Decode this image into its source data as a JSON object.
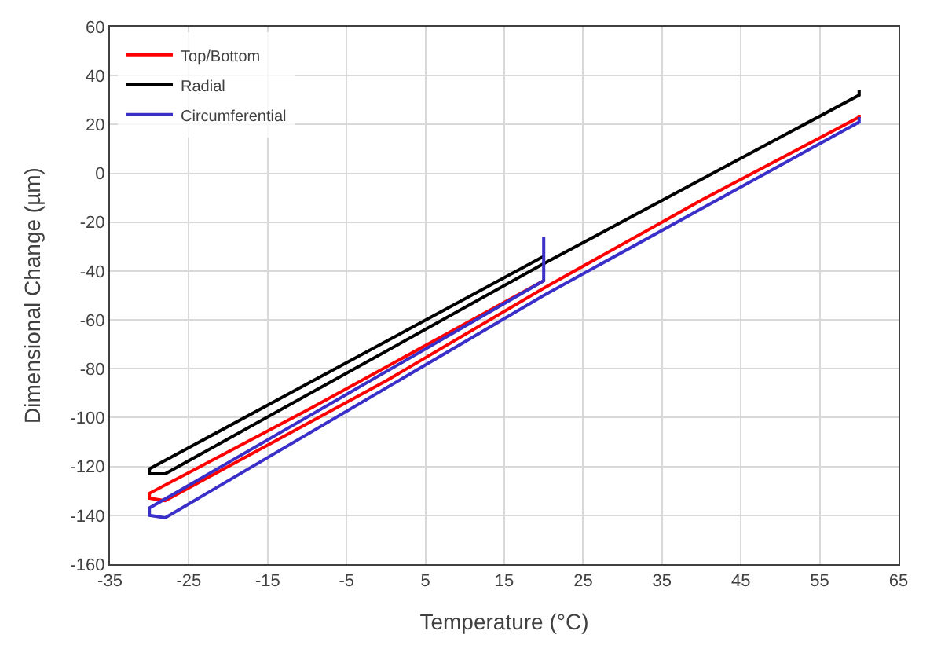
{
  "chart_data": {
    "type": "line",
    "xlabel": "Temperature (°C)",
    "ylabel": "Dimensional Change (µm)",
    "xlim": [
      -35,
      65
    ],
    "xticks": [
      -35,
      -25,
      -15,
      -5,
      5,
      15,
      25,
      35,
      45,
      55,
      65
    ],
    "ylim": [
      -160,
      60
    ],
    "yticks": [
      -160,
      -140,
      -120,
      -100,
      -80,
      -60,
      -40,
      -20,
      0,
      20,
      40,
      60
    ],
    "grid": true,
    "legend": "top left",
    "marker": "none",
    "line_style": "solid",
    "series": [
      {
        "name": "Top/Bottom",
        "color": "#ff0000",
        "x": [
          20,
          -10,
          -30,
          -30,
          -28,
          0,
          20,
          40,
          60,
          60
        ],
        "values": [
          -44,
          -97,
          -131,
          -133,
          -134,
          -85,
          -47,
          -11,
          23,
          24
        ]
      },
      {
        "name": "Radial",
        "color": "#000000",
        "x": [
          20,
          -30,
          -30,
          -28,
          20,
          60,
          60
        ],
        "values": [
          -34,
          -121,
          -123,
          -123,
          -37,
          32,
          34
        ]
      },
      {
        "name": "Circumferential",
        "color": "#3b2fc9",
        "x": [
          20,
          20,
          -30,
          -30,
          -28,
          20,
          60,
          60
        ],
        "values": [
          -26,
          -44,
          -137,
          -140,
          -141,
          -50,
          21,
          23
        ]
      }
    ]
  }
}
